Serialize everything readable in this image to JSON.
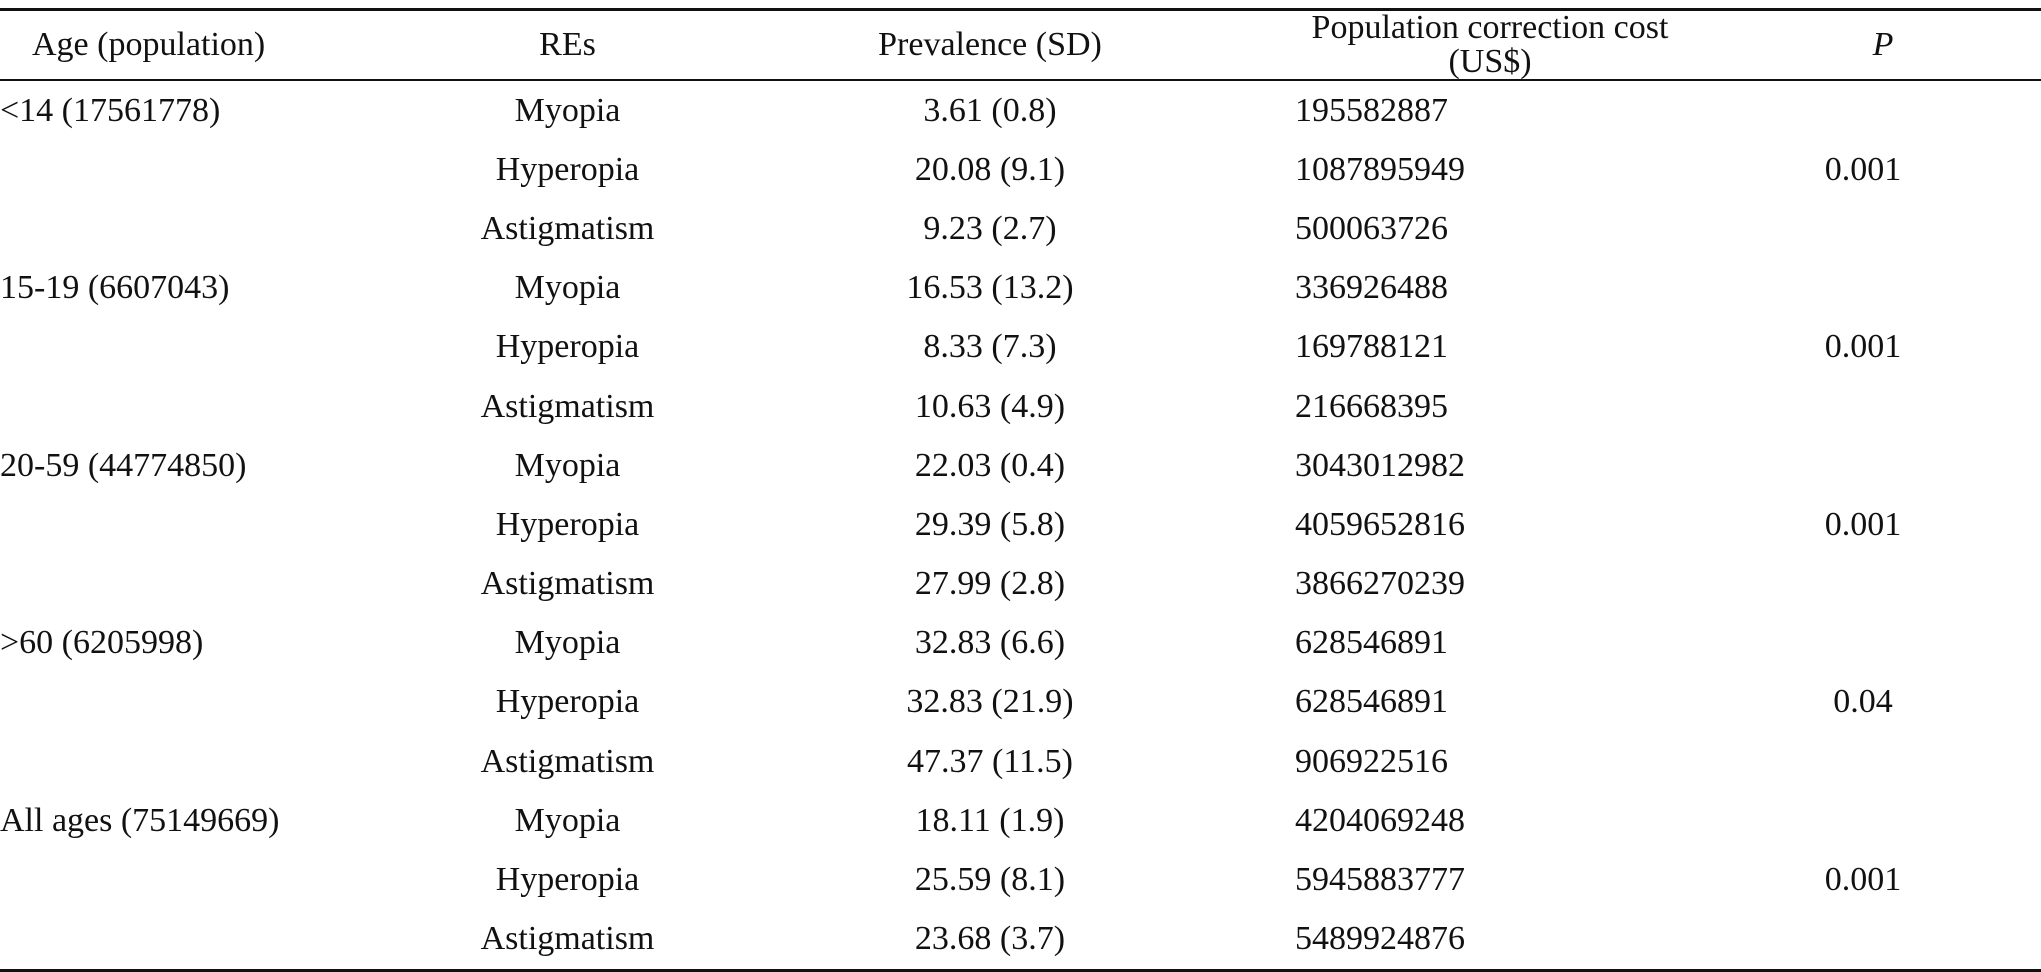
{
  "table": {
    "headers": {
      "age": "Age (population)",
      "res": "REs",
      "prevalence": "Prevalence (SD)",
      "cost": "Population correction cost (US$)",
      "p": "P"
    },
    "groups": [
      {
        "age": "<14 (17561778)",
        "p": "0.001",
        "rows": [
          {
            "re": "Myopia",
            "prevalence": "3.61 (0.8)",
            "cost": "195582887"
          },
          {
            "re": "Hyperopia",
            "prevalence": "20.08 (9.1)",
            "cost": "1087895949"
          },
          {
            "re": "Astigmatism",
            "prevalence": "9.23 (2.7)",
            "cost": "500063726"
          }
        ]
      },
      {
        "age": "15-19 (6607043)",
        "p": "0.001",
        "rows": [
          {
            "re": "Myopia",
            "prevalence": "16.53 (13.2)",
            "cost": "336926488"
          },
          {
            "re": "Hyperopia",
            "prevalence": "8.33 (7.3)",
            "cost": "169788121"
          },
          {
            "re": "Astigmatism",
            "prevalence": "10.63 (4.9)",
            "cost": "216668395"
          }
        ]
      },
      {
        "age": "20-59 (44774850)",
        "p": "0.001",
        "rows": [
          {
            "re": "Myopia",
            "prevalence": "22.03 (0.4)",
            "cost": "3043012982"
          },
          {
            "re": "Hyperopia",
            "prevalence": "29.39 (5.8)",
            "cost": "4059652816"
          },
          {
            "re": "Astigmatism",
            "prevalence": "27.99 (2.8)",
            "cost": "3866270239"
          }
        ]
      },
      {
        "age": ">60 (6205998)",
        "p": "0.04",
        "rows": [
          {
            "re": "Myopia",
            "prevalence": "32.83 (6.6)",
            "cost": "628546891"
          },
          {
            "re": "Hyperopia",
            "prevalence": "32.83 (21.9)",
            "cost": "628546891"
          },
          {
            "re": "Astigmatism",
            "prevalence": "47.37 (11.5)",
            "cost": "906922516"
          }
        ]
      },
      {
        "age": "All ages (75149669)",
        "p": "0.001",
        "rows": [
          {
            "re": "Myopia",
            "prevalence": "18.11 (1.9)",
            "cost": "4204069248"
          },
          {
            "re": "Hyperopia",
            "prevalence": "25.59 (8.1)",
            "cost": "5945883777"
          },
          {
            "re": "Astigmatism",
            "prevalence": "23.68 (3.7)",
            "cost": "5489924876"
          }
        ]
      }
    ]
  }
}
